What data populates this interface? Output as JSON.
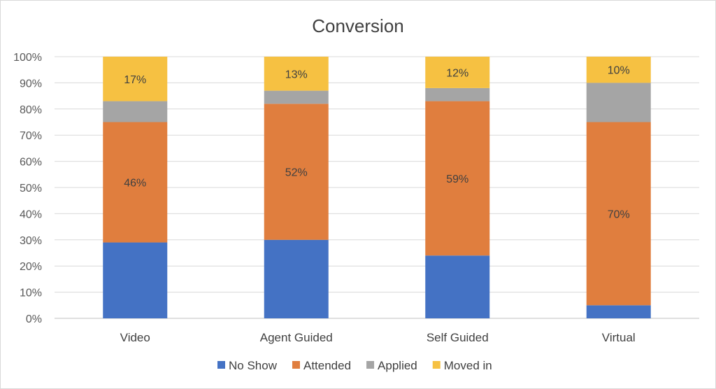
{
  "chart_data": {
    "type": "bar",
    "stacked": "percent",
    "title": "Conversion",
    "xlabel": "",
    "ylabel": "",
    "ylim": [
      0,
      100
    ],
    "yticks": [
      "0%",
      "10%",
      "20%",
      "30%",
      "40%",
      "50%",
      "60%",
      "70%",
      "80%",
      "90%",
      "100%"
    ],
    "grid": true,
    "legend": "bottom",
    "categories": [
      "Video",
      "Agent Guided",
      "Self Guided",
      "Virtual"
    ],
    "series": [
      {
        "name": "No Show",
        "color": "#4472c4",
        "values": [
          29,
          30,
          24,
          5
        ],
        "labels": [
          "",
          "",
          "",
          ""
        ]
      },
      {
        "name": "Attended",
        "color": "#e07e3e",
        "values": [
          46,
          52,
          59,
          70
        ],
        "labels": [
          "46%",
          "52%",
          "59%",
          "70%"
        ]
      },
      {
        "name": "Applied",
        "color": "#a5a5a5",
        "values": [
          8,
          5,
          5,
          15
        ],
        "labels": [
          "",
          "",
          "",
          ""
        ]
      },
      {
        "name": "Moved in",
        "color": "#f6c142",
        "values": [
          17,
          13,
          12,
          10
        ],
        "labels": [
          "17%",
          "13%",
          "12%",
          "10%"
        ]
      }
    ]
  }
}
